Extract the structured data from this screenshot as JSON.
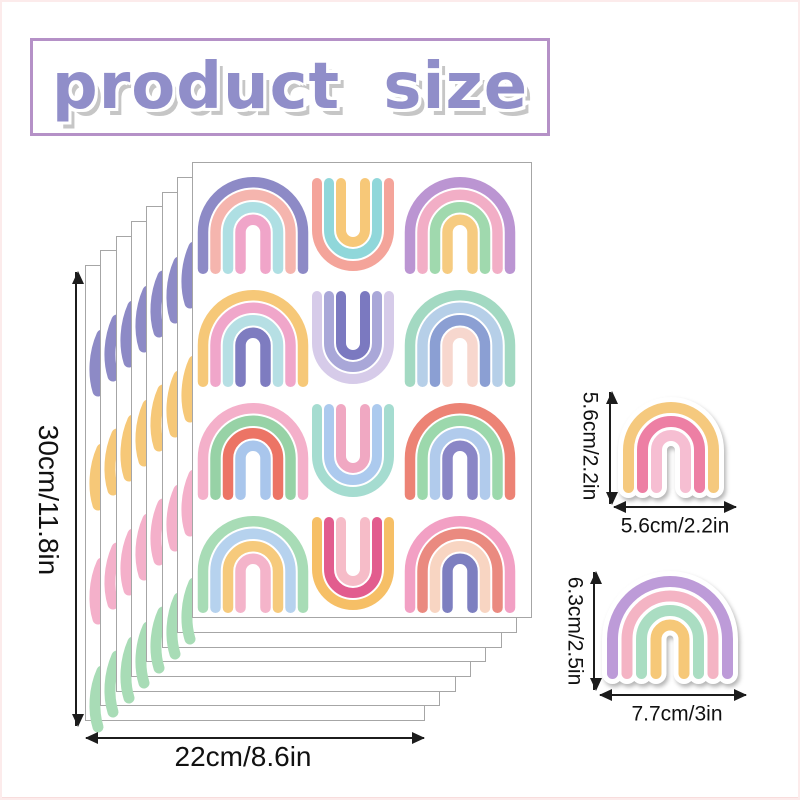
{
  "title": "product size",
  "colors": {
    "title_text": "#908ec9",
    "title_border": "#b591c7",
    "sheet_border": "#a6a6a6",
    "arrow": "#1c1c1c"
  },
  "stack": {
    "sheet_count": 8,
    "edge_leg_colors": [
      "#8d8ac6",
      "#f6c878",
      "#f4b0ca",
      "#a8dcb6"
    ],
    "rows": [
      {
        "left": {
          "shape": "arch",
          "bands": [
            "#8d8ac6",
            "#f5b5ae",
            "#aedfe3",
            "#f0a5c9"
          ]
        },
        "middle": {
          "shape": "cup",
          "bands": [
            "#f4a49a",
            "#90d7da",
            "#f7c878"
          ]
        },
        "right": {
          "shape": "arch",
          "bands": [
            "#bb95d2",
            "#f2aec6",
            "#a0d9ae",
            "#f6cb80"
          ]
        }
      },
      {
        "left": {
          "shape": "arch",
          "bands": [
            "#f6c878",
            "#f0a6ca",
            "#b6dfe4",
            "#7e7cc0"
          ]
        },
        "middle": {
          "shape": "cup",
          "bands": [
            "#d6cbe9",
            "#a9a7d8",
            "#7b79c0"
          ]
        },
        "right": {
          "shape": "arch",
          "bands": [
            "#a3d9c2",
            "#b6cfe8",
            "#8b9fd3",
            "#f7d7ce"
          ]
        }
      },
      {
        "left": {
          "shape": "arch",
          "bands": [
            "#f4b0ca",
            "#97d2a6",
            "#ec7465",
            "#a9c6ec"
          ]
        },
        "middle": {
          "shape": "cup",
          "bands": [
            "#a5dcd0",
            "#accaee",
            "#f0a8c2"
          ]
        },
        "right": {
          "shape": "arch",
          "bands": [
            "#ec8375",
            "#9cd8ac",
            "#b1cbec",
            "#8a86c6"
          ]
        }
      },
      {
        "left": {
          "shape": "arch",
          "bands": [
            "#a8dcb6",
            "#b6d2ee",
            "#f6ca7c",
            "#f4b4ca"
          ]
        },
        "middle": {
          "shape": "cup",
          "bands": [
            "#f6bf66",
            "#e25c8e",
            "#f6bcc8"
          ]
        },
        "right": {
          "shape": "arch",
          "bands": [
            "#f2a0c4",
            "#ea8a80",
            "#f8d5c2",
            "#7d7fc0"
          ]
        }
      }
    ]
  },
  "dimensions": {
    "height_label": "30cm/11.8in",
    "width_label": "22cm/8.6in"
  },
  "stickers": [
    {
      "name": "small rainbow sticker",
      "bands": [
        "#f5c97e",
        "#ed7fa4",
        "#f6bed2"
      ],
      "height_label": "5.6cm/2.2in",
      "width_label": "5.6cm/2.2in"
    },
    {
      "name": "large rainbow sticker",
      "bands": [
        "#bd9bd8",
        "#f4b4c4",
        "#aaddc2",
        "#f6c878"
      ],
      "height_label": "6.3cm/2.5in",
      "width_label": "7.7cm/3in"
    }
  ]
}
